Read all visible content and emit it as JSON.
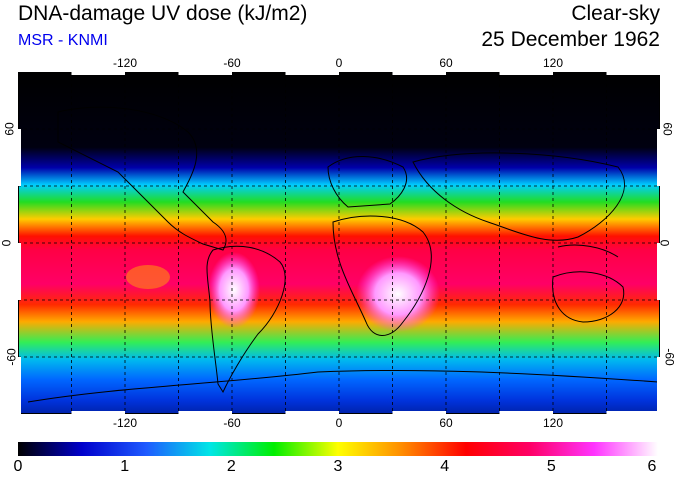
{
  "header": {
    "title": "DNA-damage UV dose (kJ/m2)",
    "subtitle": "MSR - KNMI",
    "condition": "Clear-sky",
    "date": "25 December 1962"
  },
  "map": {
    "lon_labels": [
      "-120",
      "-60",
      "0",
      "60",
      "120"
    ],
    "lon_values": [
      -120,
      -60,
      0,
      60,
      120
    ],
    "lat_labels_left": [
      "60",
      "0",
      "-60"
    ],
    "lat_labels_right": [
      "60",
      "0",
      "-60"
    ],
    "lat_values": [
      60,
      0,
      -60
    ]
  },
  "colorbar": {
    "ticks": [
      "0",
      "1",
      "2",
      "3",
      "4",
      "5",
      "6"
    ],
    "min": 0,
    "max": 6,
    "colors": [
      "#000000",
      "#0000cc",
      "#1e5aff",
      "#00e6e6",
      "#00ee00",
      "#ffff00",
      "#ff8c00",
      "#ff0000",
      "#ff0066",
      "#ff33ff",
      "#ffffff"
    ]
  }
}
